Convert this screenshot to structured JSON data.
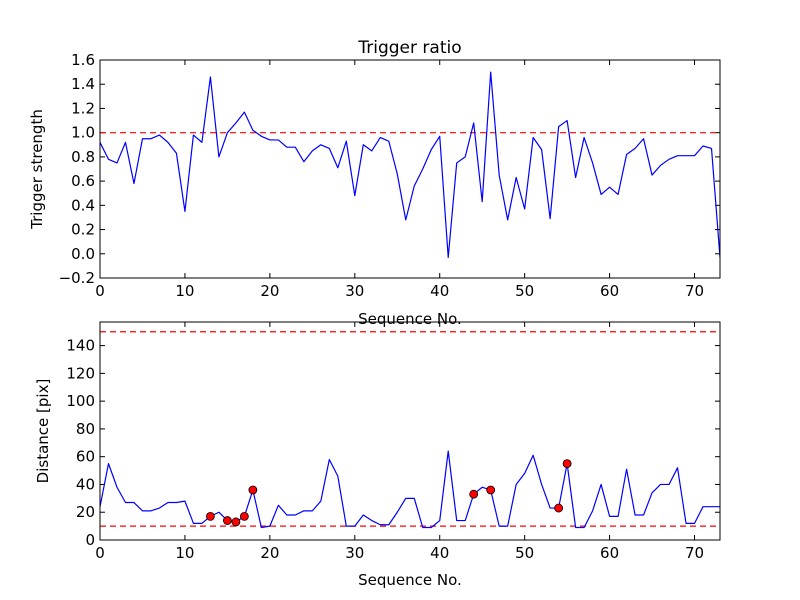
{
  "chart_data": [
    {
      "type": "line",
      "title": "Trigger ratio",
      "xlabel": "Sequence No.",
      "ylabel": "Trigger strength",
      "xlim": [
        0,
        73
      ],
      "ylim": [
        -0.2,
        1.6
      ],
      "xticks": [
        0,
        10,
        20,
        30,
        40,
        50,
        60,
        70
      ],
      "yticks": [
        -0.2,
        0.0,
        0.2,
        0.4,
        0.6,
        0.8,
        1.0,
        1.2,
        1.4,
        1.6
      ],
      "ytick_labels": [
        "−0.2",
        "0.0",
        "0.2",
        "0.4",
        "0.6",
        "0.8",
        "1.0",
        "1.2",
        "1.4",
        "1.6"
      ],
      "series": [
        {
          "name": "trigger strength",
          "color": "#0000ff",
          "x": [
            0,
            1,
            2,
            3,
            4,
            5,
            6,
            7,
            8,
            9,
            10,
            11,
            12,
            13,
            14,
            15,
            16,
            17,
            18,
            19,
            20,
            21,
            22,
            23,
            24,
            25,
            26,
            27,
            28,
            29,
            30,
            31,
            32,
            33,
            34,
            35,
            36,
            37,
            38,
            39,
            40,
            41,
            42,
            43,
            44,
            45,
            46,
            47,
            48,
            49,
            50,
            51,
            52,
            53,
            54,
            55,
            56,
            57,
            58,
            59,
            60,
            61,
            62,
            63,
            64,
            65,
            66,
            67,
            68,
            69,
            70,
            71,
            72,
            73
          ],
          "values": [
            0.92,
            0.78,
            0.75,
            0.92,
            0.58,
            0.95,
            0.95,
            0.98,
            0.92,
            0.83,
            0.35,
            0.98,
            0.92,
            1.46,
            0.8,
            1.0,
            1.08,
            1.17,
            1.02,
            0.97,
            0.94,
            0.94,
            0.88,
            0.88,
            0.76,
            0.85,
            0.9,
            0.87,
            0.71,
            0.93,
            0.48,
            0.9,
            0.85,
            0.96,
            0.93,
            0.66,
            0.28,
            0.56,
            0.7,
            0.86,
            0.97,
            -0.03,
            0.75,
            0.8,
            1.08,
            0.43,
            1.5,
            0.65,
            0.28,
            0.63,
            0.37,
            0.96,
            0.86,
            0.29,
            1.05,
            1.1,
            0.63,
            0.96,
            0.75,
            0.49,
            0.55,
            0.49,
            0.82,
            0.87,
            0.95,
            0.65,
            0.73,
            0.78,
            0.81,
            0.81,
            0.81,
            0.89,
            0.87,
            -0.03
          ]
        }
      ],
      "hlines": [
        {
          "y": 1.0,
          "color": "#ff0000",
          "style": "dashed"
        }
      ]
    },
    {
      "type": "line",
      "title": "",
      "xlabel": "Sequence No.",
      "ylabel": "Distance [pix]",
      "xlim": [
        0,
        73
      ],
      "ylim": [
        0,
        157
      ],
      "xticks": [
        0,
        10,
        20,
        30,
        40,
        50,
        60,
        70
      ],
      "yticks": [
        0,
        20,
        40,
        60,
        80,
        100,
        120,
        140
      ],
      "series": [
        {
          "name": "distance",
          "color": "#0000ff",
          "x": [
            0,
            1,
            2,
            3,
            4,
            5,
            6,
            7,
            8,
            9,
            10,
            11,
            12,
            13,
            14,
            15,
            16,
            17,
            18,
            19,
            20,
            21,
            22,
            23,
            24,
            25,
            26,
            27,
            28,
            29,
            30,
            31,
            32,
            33,
            34,
            35,
            36,
            37,
            38,
            39,
            40,
            41,
            42,
            43,
            44,
            45,
            46,
            47,
            48,
            49,
            50,
            51,
            52,
            53,
            54,
            55,
            56,
            57,
            58,
            59,
            60,
            61,
            62,
            63,
            64,
            65,
            66,
            67,
            68,
            69,
            70,
            71,
            72,
            73
          ],
          "values": [
            24,
            55,
            38,
            27,
            27,
            21,
            21,
            23,
            27,
            27,
            28,
            12,
            12,
            17,
            20,
            14,
            13,
            17,
            36,
            9,
            10,
            25,
            18,
            18,
            21,
            21,
            28,
            58,
            46,
            10,
            10,
            18,
            14,
            11,
            11,
            20,
            30,
            30,
            9,
            9,
            14,
            64,
            14,
            14,
            33,
            38,
            36,
            10,
            10,
            40,
            48,
            61,
            40,
            23,
            23,
            55,
            9,
            9,
            21,
            40,
            17,
            17,
            51,
            18,
            18,
            34,
            40,
            40,
            52,
            12,
            12,
            24,
            24,
            24
          ],
          "markers": {
            "color": "#ff0000",
            "x": [
              13,
              15,
              16,
              17,
              18,
              44,
              46,
              54,
              55
            ],
            "values": [
              17,
              14,
              13,
              17,
              36,
              33,
              36,
              23,
              55
            ]
          }
        }
      ],
      "hlines": [
        {
          "y": 150,
          "color": "#ff0000",
          "style": "dashed"
        },
        {
          "y": 10,
          "color": "#ff0000",
          "style": "dashed"
        }
      ]
    }
  ]
}
